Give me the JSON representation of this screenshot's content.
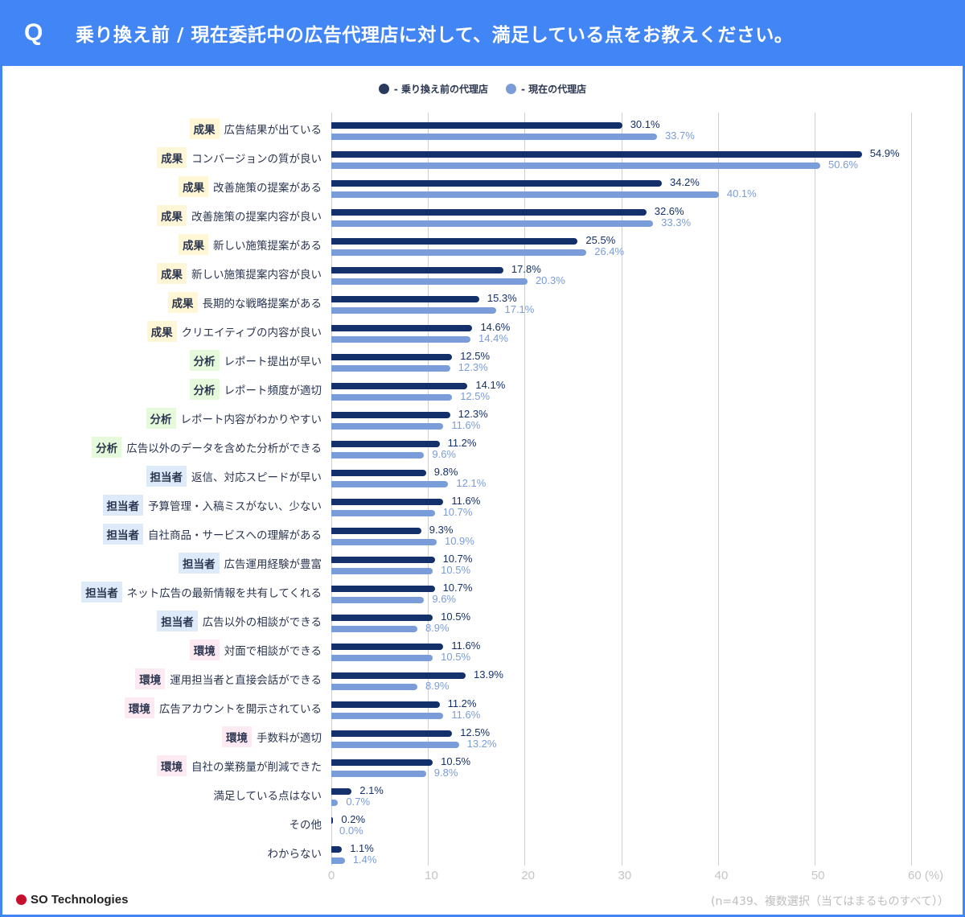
{
  "header": {
    "q": "Q",
    "title": "乗り換え前 / 現在委託中の広告代理店に対して、満足している点をお教えください。"
  },
  "footer": {
    "logo": "SO Technologies",
    "note": "(n=439、複数選択（当てはまるものすべて））"
  },
  "colors": {
    "header": "#4285f4",
    "series_before": "#14306b",
    "series_now": "#7a9cd8",
    "tag_成果": "#fff6d5",
    "tag_分析": "#e4fadb",
    "tag_担当者": "#dceafa",
    "tag_環境": "#fde9f1"
  },
  "chart_data": {
    "type": "bar",
    "orientation": "horizontal",
    "title": "乗り換え前 / 現在委託中の広告代理店に対して、満足している点をお教えください。",
    "xlabel": "(%)",
    "xlim": [
      0,
      60
    ],
    "xticks": [
      "0",
      "10",
      "20",
      "30",
      "40",
      "50",
      "60"
    ],
    "xunit": "(%)",
    "grid": true,
    "legend_position": "top-center",
    "categories": [
      {
        "tag": "成果",
        "label": "広告結果が出ている"
      },
      {
        "tag": "成果",
        "label": "コンバージョンの質が良い"
      },
      {
        "tag": "成果",
        "label": "改善施策の提案がある"
      },
      {
        "tag": "成果",
        "label": "改善施策の提案内容が良い"
      },
      {
        "tag": "成果",
        "label": "新しい施策提案がある"
      },
      {
        "tag": "成果",
        "label": "新しい施策提案内容が良い"
      },
      {
        "tag": "成果",
        "label": "長期的な戦略提案がある"
      },
      {
        "tag": "成果",
        "label": "クリエイティブの内容が良い"
      },
      {
        "tag": "分析",
        "label": "レポート提出が早い"
      },
      {
        "tag": "分析",
        "label": "レポート頻度が適切"
      },
      {
        "tag": "分析",
        "label": "レポート内容がわかりやすい"
      },
      {
        "tag": "分析",
        "label": "広告以外のデータを含めた分析ができる"
      },
      {
        "tag": "担当者",
        "label": "返信、対応スピードが早い"
      },
      {
        "tag": "担当者",
        "label": "予算管理・入稿ミスがない、少ない"
      },
      {
        "tag": "担当者",
        "label": "自社商品・サービスへの理解がある"
      },
      {
        "tag": "担当者",
        "label": "広告運用経験が豊富"
      },
      {
        "tag": "担当者",
        "label": "ネット広告の最新情報を共有してくれる"
      },
      {
        "tag": "担当者",
        "label": "広告以外の相談ができる"
      },
      {
        "tag": "環境",
        "label": "対面で相談ができる"
      },
      {
        "tag": "環境",
        "label": "運用担当者と直接会話ができる"
      },
      {
        "tag": "環境",
        "label": "広告アカウントを開示されている"
      },
      {
        "tag": "環境",
        "label": "手数料が適切"
      },
      {
        "tag": "環境",
        "label": "自社の業務量が削減できた"
      },
      {
        "tag": "",
        "label": "満足している点はない"
      },
      {
        "tag": "",
        "label": "その他"
      },
      {
        "tag": "",
        "label": "わからない"
      }
    ],
    "series": [
      {
        "name": "- 乗り換え前の代理店",
        "values": [
          30.1,
          54.9,
          34.2,
          32.6,
          25.5,
          17.8,
          15.3,
          14.6,
          12.5,
          14.1,
          12.3,
          11.2,
          9.8,
          11.6,
          9.3,
          10.7,
          10.7,
          10.5,
          11.6,
          13.9,
          11.2,
          12.5,
          10.5,
          2.1,
          0.2,
          1.1
        ]
      },
      {
        "name": "- 現在の代理店",
        "values": [
          33.7,
          50.6,
          40.1,
          33.3,
          26.4,
          20.3,
          17.1,
          14.4,
          12.3,
          12.5,
          11.6,
          9.6,
          12.1,
          10.7,
          10.9,
          10.5,
          9.6,
          8.9,
          10.5,
          8.9,
          11.6,
          13.2,
          9.8,
          0.7,
          0.0,
          1.4
        ]
      }
    ]
  }
}
